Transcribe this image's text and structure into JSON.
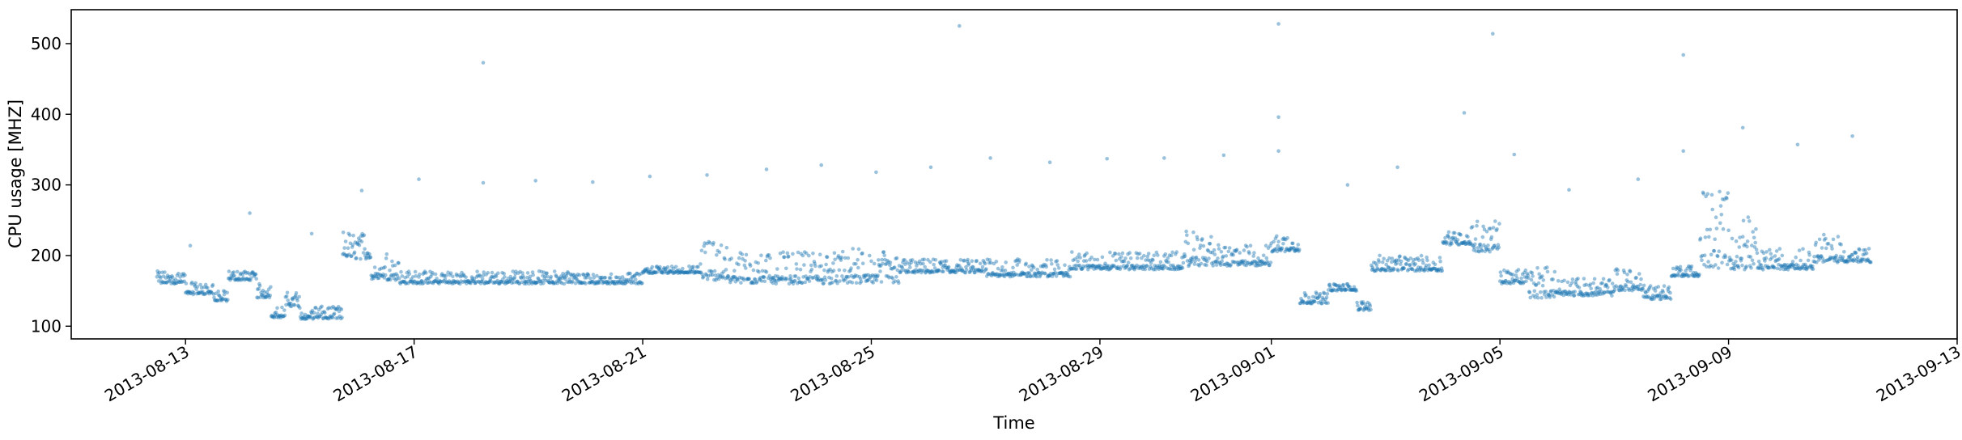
{
  "chart_data": {
    "type": "scatter",
    "xlabel": "Time",
    "ylabel": "CPU usage [MHZ]",
    "xlim": [
      "2013-08-11T00:00",
      "2013-09-13T00:00"
    ],
    "ylim": [
      82,
      548
    ],
    "grid": false,
    "x_ticks": [
      "2013-08-13",
      "2013-08-17",
      "2013-08-21",
      "2013-08-25",
      "2013-08-29",
      "2013-09-01",
      "2013-09-05",
      "2013-09-09",
      "2013-09-13"
    ],
    "y_ticks": [
      100,
      200,
      300,
      400,
      500
    ],
    "point_color": "#1f77b4",
    "point_alpha": 0.45,
    "segments": [
      [
        "2013-08-12T12:00",
        "2013-08-13T00:00",
        160,
        178
      ],
      [
        "2013-08-13T00:00",
        "2013-08-13T12:00",
        145,
        162
      ],
      [
        "2013-08-13T12:00",
        "2013-08-13T18:00",
        135,
        150
      ],
      [
        "2013-08-13T18:00",
        "2013-08-14T06:00",
        165,
        178
      ],
      [
        "2013-08-14T06:00",
        "2013-08-14T12:00",
        140,
        160
      ],
      [
        "2013-08-14T12:00",
        "2013-08-14T18:00",
        112,
        128
      ],
      [
        "2013-08-14T18:00",
        "2013-08-15T00:00",
        128,
        148
      ],
      [
        "2013-08-15T00:00",
        "2013-08-15T18:00",
        110,
        128
      ],
      [
        "2013-08-15T18:00",
        "2013-08-16T06:00",
        195,
        235
      ],
      [
        "2013-08-16T06:00",
        "2013-08-16T18:00",
        165,
        205
      ],
      [
        "2013-08-16T18:00",
        "2013-08-19T18:00",
        160,
        178
      ],
      [
        "2013-08-19T18:00",
        "2013-08-21T00:00",
        160,
        175
      ],
      [
        "2013-08-21T00:00",
        "2013-08-22T00:00",
        175,
        185
      ],
      [
        "2013-08-22T00:00",
        "2013-08-22T12:00",
        165,
        225
      ],
      [
        "2013-08-22T12:00",
        "2013-08-24T12:00",
        160,
        205
      ],
      [
        "2013-08-24T12:00",
        "2013-08-25T12:00",
        160,
        210
      ],
      [
        "2013-08-25T12:00",
        "2013-08-27T00:00",
        175,
        195
      ],
      [
        "2013-08-27T00:00",
        "2013-08-28T12:00",
        170,
        195
      ],
      [
        "2013-08-28T12:00",
        "2013-08-30T12:00",
        180,
        205
      ],
      [
        "2013-08-30T12:00",
        "2013-08-31T00:00",
        185,
        235
      ],
      [
        "2013-08-31T00:00",
        "2013-09-01T00:00",
        185,
        215
      ],
      [
        "2013-09-01T00:00",
        "2013-09-01T12:00",
        205,
        230
      ],
      [
        "2013-09-01T12:00",
        "2013-09-02T00:00",
        132,
        148
      ],
      [
        "2013-09-02T00:00",
        "2013-09-02T12:00",
        150,
        160
      ],
      [
        "2013-09-02T12:00",
        "2013-09-02T18:00",
        122,
        135
      ],
      [
        "2013-09-02T18:00",
        "2013-09-04T00:00",
        178,
        200
      ],
      [
        "2013-09-04T00:00",
        "2013-09-04T12:00",
        215,
        235
      ],
      [
        "2013-09-04T12:00",
        "2013-09-05T00:00",
        205,
        250
      ],
      [
        "2013-09-05T00:00",
        "2013-09-05T12:00",
        160,
        180
      ],
      [
        "2013-09-05T12:00",
        "2013-09-06T00:00",
        140,
        185
      ],
      [
        "2013-09-06T00:00",
        "2013-09-07T00:00",
        143,
        168
      ],
      [
        "2013-09-07T00:00",
        "2013-09-07T12:00",
        150,
        185
      ],
      [
        "2013-09-07T12:00",
        "2013-09-08T00:00",
        138,
        160
      ],
      [
        "2013-09-08T00:00",
        "2013-09-08T12:00",
        170,
        185
      ],
      [
        "2013-09-08T12:00",
        "2013-09-09T00:00",
        180,
        295
      ],
      [
        "2013-09-09T00:00",
        "2013-09-09T12:00",
        180,
        255
      ],
      [
        "2013-09-09T12:00",
        "2013-09-10T12:00",
        180,
        210
      ],
      [
        "2013-09-10T12:00",
        "2013-09-11T00:00",
        190,
        230
      ],
      [
        "2013-09-11T00:00",
        "2013-09-11T12:00",
        190,
        210
      ]
    ],
    "outliers": [
      {
        "x": "2013-08-13T02:00",
        "y": 214
      },
      {
        "x": "2013-08-14T03:00",
        "y": 260
      },
      {
        "x": "2013-08-15T05:00",
        "y": 231
      },
      {
        "x": "2013-08-16T02:00",
        "y": 292
      },
      {
        "x": "2013-08-17T02:00",
        "y": 308
      },
      {
        "x": "2013-08-18T05:00",
        "y": 473
      },
      {
        "x": "2013-08-18T05:00",
        "y": 303
      },
      {
        "x": "2013-08-19T03:00",
        "y": 306
      },
      {
        "x": "2013-08-20T03:00",
        "y": 304
      },
      {
        "x": "2013-08-21T03:00",
        "y": 312
      },
      {
        "x": "2013-08-22T03:00",
        "y": 314
      },
      {
        "x": "2013-08-23T04:00",
        "y": 322
      },
      {
        "x": "2013-08-24T03:00",
        "y": 328
      },
      {
        "x": "2013-08-25T02:00",
        "y": 318
      },
      {
        "x": "2013-08-26T01:00",
        "y": 325
      },
      {
        "x": "2013-08-26T13:00",
        "y": 525
      },
      {
        "x": "2013-08-27T02:00",
        "y": 338
      },
      {
        "x": "2013-08-28T03:00",
        "y": 332
      },
      {
        "x": "2013-08-29T03:00",
        "y": 337
      },
      {
        "x": "2013-08-30T03:00",
        "y": 338
      },
      {
        "x": "2013-08-31T04:00",
        "y": 342
      },
      {
        "x": "2013-09-01T03:00",
        "y": 528
      },
      {
        "x": "2013-09-01T03:00",
        "y": 396
      },
      {
        "x": "2013-09-01T03:00",
        "y": 348
      },
      {
        "x": "2013-09-02T08:00",
        "y": 300
      },
      {
        "x": "2013-09-03T05:00",
        "y": 325
      },
      {
        "x": "2013-09-04T09:00",
        "y": 402
      },
      {
        "x": "2013-09-04T21:00",
        "y": 514
      },
      {
        "x": "2013-09-05T06:00",
        "y": 343
      },
      {
        "x": "2013-09-06T05:00",
        "y": 293
      },
      {
        "x": "2013-09-07T10:00",
        "y": 308
      },
      {
        "x": "2013-09-08T05:00",
        "y": 484
      },
      {
        "x": "2013-09-08T05:00",
        "y": 348
      },
      {
        "x": "2013-09-09T06:00",
        "y": 381
      },
      {
        "x": "2013-09-10T05:00",
        "y": 357
      },
      {
        "x": "2013-09-11T04:00",
        "y": 369
      }
    ]
  }
}
